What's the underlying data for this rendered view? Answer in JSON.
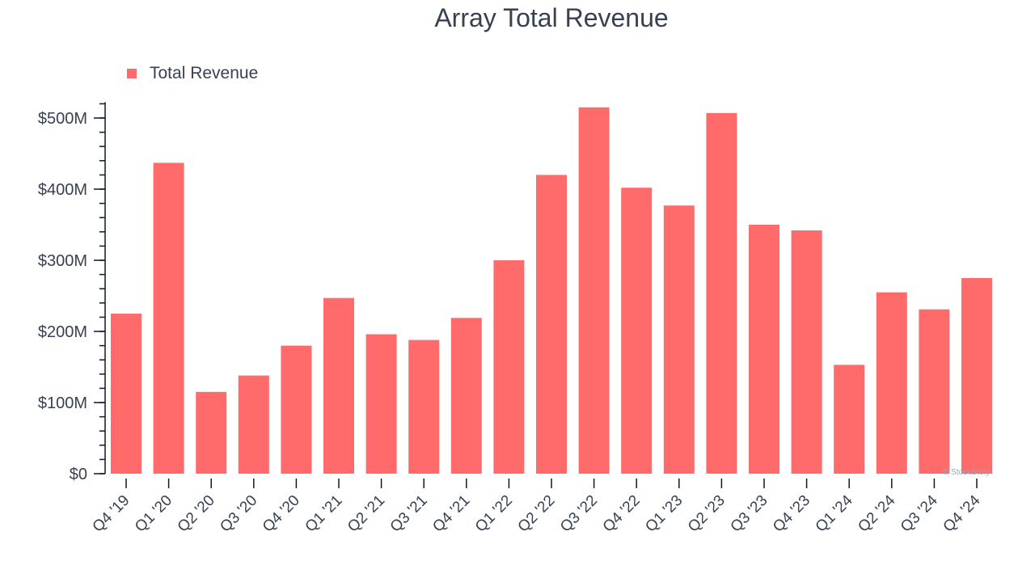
{
  "chart_data": {
    "type": "bar",
    "title": "Array Total Revenue",
    "xlabel": "",
    "ylabel": "",
    "categories": [
      "Q4 '19",
      "Q1 '20",
      "Q2 '20",
      "Q3 '20",
      "Q4 '20",
      "Q1 '21",
      "Q2 '21",
      "Q3 '21",
      "Q4 '21",
      "Q1 '22",
      "Q2 '22",
      "Q3 '22",
      "Q4 '22",
      "Q1 '23",
      "Q2 '23",
      "Q3 '23",
      "Q4 '23",
      "Q1 '24",
      "Q2 '24",
      "Q3 '24",
      "Q4 '24"
    ],
    "series": [
      {
        "name": "Total Revenue",
        "color": "#ff6b6b",
        "values": [
          225,
          437,
          115,
          138,
          180,
          247,
          196,
          188,
          219,
          300,
          420,
          515,
          402,
          377,
          507,
          350,
          342,
          153,
          255,
          231,
          275
        ]
      }
    ],
    "yticks": [
      {
        "value": 0,
        "label": "$0"
      },
      {
        "value": 100,
        "label": "$100M"
      },
      {
        "value": 200,
        "label": "$200M"
      },
      {
        "value": 300,
        "label": "$300M"
      },
      {
        "value": 400,
        "label": "$400M"
      },
      {
        "value": 500,
        "label": "$500M"
      }
    ],
    "ylim": [
      0,
      520
    ],
    "unit": "$M",
    "grid": false,
    "legend_position": "top-left"
  },
  "watermark": "© StockStory"
}
